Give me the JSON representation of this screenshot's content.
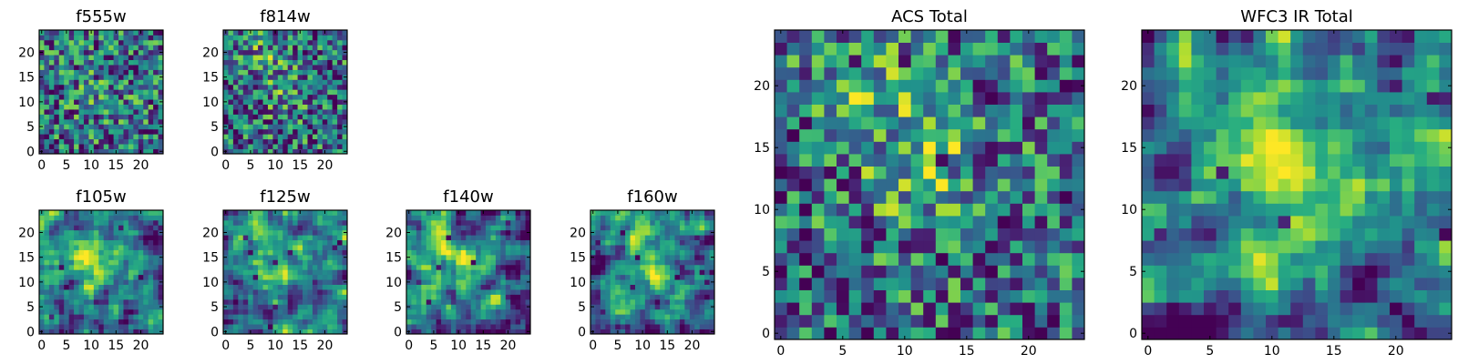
{
  "colormap": "viridis",
  "colors": {
    "low": "#440154",
    "mid": "#21918c",
    "high": "#fde725",
    "frame": "#000000"
  },
  "chart_data": [
    {
      "type": "heatmap",
      "title": "f555w",
      "grid_size": 25,
      "value_range": [
        0,
        1
      ],
      "xticks": [
        0,
        5,
        10,
        15,
        20
      ],
      "yticks": [
        0,
        5,
        10,
        15,
        20
      ],
      "pattern": "noisy",
      "seed": 11,
      "blobs": [
        [
          12,
          12,
          0.1,
          5
        ]
      ]
    },
    {
      "type": "heatmap",
      "title": "f814w",
      "grid_size": 25,
      "value_range": [
        0,
        1
      ],
      "xticks": [
        0,
        5,
        10,
        15,
        20
      ],
      "yticks": [
        0,
        5,
        10,
        15,
        20
      ],
      "pattern": "noisy",
      "seed": 23,
      "blobs": [
        [
          8,
          19,
          0.2,
          3
        ],
        [
          12,
          12,
          0.18,
          3
        ]
      ]
    },
    {
      "type": "heatmap",
      "title": "f105w",
      "grid_size": 25,
      "value_range": [
        0,
        1
      ],
      "xticks": [
        0,
        5,
        10,
        15,
        20
      ],
      "yticks": [
        0,
        5,
        10,
        15,
        20
      ],
      "pattern": "smooth",
      "seed": 37,
      "blobs": [
        [
          9,
          18,
          0.3,
          4
        ],
        [
          12,
          12,
          0.35,
          3
        ]
      ]
    },
    {
      "type": "heatmap",
      "title": "f125w",
      "grid_size": 25,
      "value_range": [
        0,
        1
      ],
      "xticks": [
        0,
        5,
        10,
        15,
        20
      ],
      "yticks": [
        0,
        5,
        10,
        15,
        20
      ],
      "pattern": "smooth",
      "seed": 41,
      "blobs": [
        [
          8,
          18,
          0.28,
          4
        ],
        [
          12,
          12,
          0.3,
          3
        ]
      ]
    },
    {
      "type": "heatmap",
      "title": "f140w",
      "grid_size": 25,
      "value_range": [
        0,
        1
      ],
      "xticks": [
        0,
        5,
        10,
        15,
        20
      ],
      "yticks": [
        0,
        5,
        10,
        15,
        20
      ],
      "pattern": "smooth",
      "seed": 53,
      "blobs": [
        [
          7,
          19,
          0.3,
          4
        ],
        [
          12,
          12,
          0.3,
          3
        ]
      ]
    },
    {
      "type": "heatmap",
      "title": "f160w",
      "grid_size": 25,
      "value_range": [
        0,
        1
      ],
      "xticks": [
        0,
        5,
        10,
        15,
        20
      ],
      "yticks": [
        0,
        5,
        10,
        15,
        20
      ],
      "pattern": "smooth",
      "seed": 67,
      "blobs": [
        [
          8,
          19,
          0.35,
          4
        ],
        [
          12,
          12,
          0.35,
          3
        ]
      ]
    },
    {
      "type": "heatmap",
      "title": "ACS Total",
      "grid_size": 25,
      "value_range": [
        0,
        1
      ],
      "xticks": [
        0,
        5,
        10,
        15,
        20
      ],
      "yticks": [
        0,
        5,
        10,
        15,
        20
      ],
      "pattern": "noisy",
      "seed": 79,
      "blobs": [
        [
          8,
          20,
          0.28,
          3
        ],
        [
          11,
          12,
          0.25,
          3
        ],
        [
          14,
          15,
          0.15,
          2
        ]
      ]
    },
    {
      "type": "heatmap",
      "title": "WFC3 IR Total",
      "grid_size": 25,
      "value_range": [
        0,
        1
      ],
      "xticks": [
        0,
        5,
        10,
        15,
        20
      ],
      "yticks": [
        0,
        5,
        10,
        15,
        20
      ],
      "pattern": "smooth",
      "seed": 97,
      "blobs": [
        [
          9,
          19,
          0.35,
          4
        ],
        [
          12,
          12,
          0.38,
          3
        ]
      ]
    }
  ]
}
